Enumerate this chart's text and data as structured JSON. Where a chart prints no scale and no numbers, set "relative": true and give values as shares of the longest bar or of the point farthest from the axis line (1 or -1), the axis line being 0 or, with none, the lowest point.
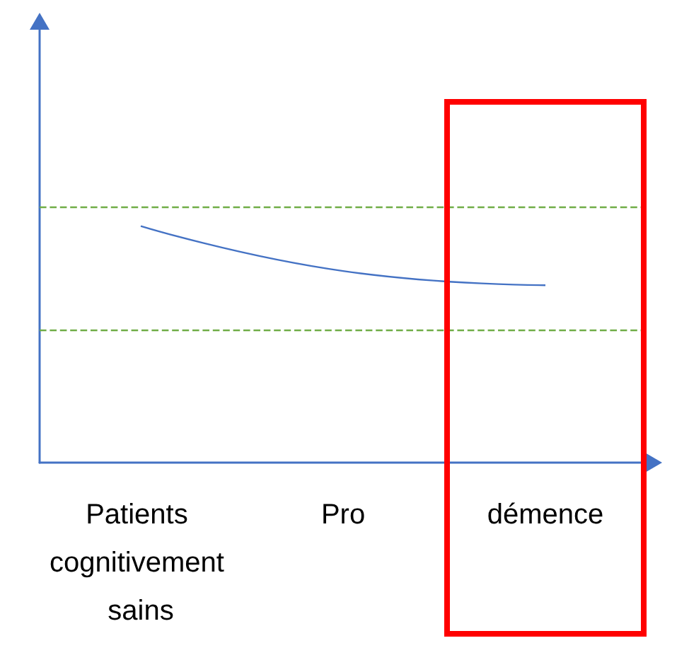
{
  "chart_data": {
    "type": "line",
    "relative": true,
    "categories": [
      "Patients cognitivement sains",
      "Pro",
      "démence"
    ],
    "series": [
      {
        "color": "#4472c4",
        "values": [
          1,
          0.81,
          0.75
        ]
      }
    ],
    "ref_lines": [
      {
        "axis": "y",
        "value": 1.08,
        "color": "#70ad47",
        "line_style": "dashed"
      },
      {
        "axis": "y",
        "value": 0.56,
        "color": "#70ad47",
        "line_style": "dashed"
      }
    ],
    "marker": "none",
    "line_style": "solid"
  }
}
